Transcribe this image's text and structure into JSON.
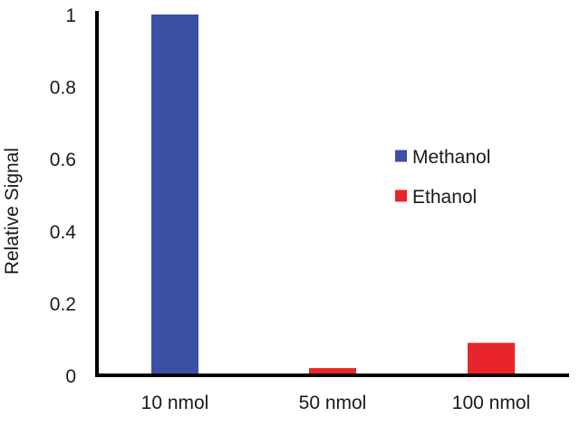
{
  "chart_data": {
    "type": "bar",
    "title": "",
    "xlabel": "",
    "ylabel": "Relative Signal",
    "ylim": [
      0,
      1
    ],
    "yticks": [
      "0",
      "0.2",
      "0.4",
      "0.6",
      "0.8",
      "1"
    ],
    "grid": false,
    "legend_position": "right",
    "categories": [
      "10 nmol",
      "50 nmol",
      "100 nmol"
    ],
    "series": [
      {
        "name": "Methanol",
        "color": "#3b4fa3",
        "values": [
          1.0,
          null,
          null
        ]
      },
      {
        "name": "Ethanol",
        "color": "#e8252a",
        "values": [
          null,
          0.02,
          0.09
        ]
      }
    ]
  }
}
